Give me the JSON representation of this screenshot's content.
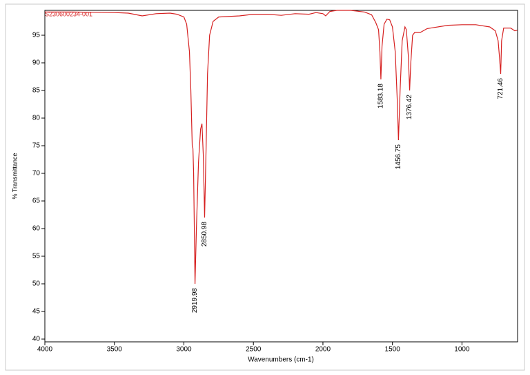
{
  "chart_data": {
    "type": "line",
    "title": "S230600234-001",
    "x_label": "Wavenumbers (cm-1)",
    "y_label": "% Transmittance",
    "xlim": [
      4000,
      600
    ],
    "ylim": [
      39.5,
      99.5
    ],
    "xticks": [
      4000,
      3500,
      3000,
      2500,
      2000,
      1500,
      1000
    ],
    "yticks": [
      40,
      45,
      50,
      55,
      60,
      65,
      70,
      75,
      80,
      85,
      90,
      95
    ],
    "x": [
      4000,
      3800,
      3500,
      3400,
      3300,
      3200,
      3100,
      3050,
      3000,
      2980,
      2960,
      2950,
      2940,
      2935,
      2930,
      2925,
      2919.98,
      2910,
      2895,
      2880,
      2870,
      2860,
      2850.98,
      2840,
      2830,
      2815,
      2790,
      2750,
      2600,
      2500,
      2400,
      2300,
      2200,
      2100,
      2050,
      2000,
      1980,
      1950,
      1900,
      1800,
      1700,
      1650,
      1620,
      1600,
      1590,
      1583.18,
      1575,
      1560,
      1540,
      1520,
      1500,
      1480,
      1465,
      1456.75,
      1445,
      1430,
      1410,
      1400,
      1385,
      1376.42,
      1368,
      1355,
      1340,
      1300,
      1250,
      1200,
      1100,
      1000,
      900,
      800,
      760,
      740,
      730,
      721.46,
      715,
      700,
      650,
      620,
      603
    ],
    "series": [
      {
        "color": "#d62020",
        "values": [
          99.2,
          99.2,
          99.1,
          99.0,
          98.5,
          98.9,
          99.0,
          98.8,
          98.3,
          97,
          92,
          85,
          75,
          74.5,
          70,
          60,
          50,
          60,
          72,
          78,
          79,
          73,
          62,
          75,
          88,
          95,
          97.5,
          98.3,
          98.5,
          98.8,
          98.8,
          98.6,
          98.9,
          98.8,
          99.1,
          98.9,
          98.5,
          99.3,
          99.5,
          99.5,
          99.2,
          98.7,
          97.3,
          96,
          92,
          87,
          93,
          97,
          97.9,
          97.8,
          96.5,
          92,
          83,
          76,
          85,
          94,
          96.5,
          96,
          91,
          85,
          90,
          95,
          95.5,
          95.5,
          96.2,
          96.4,
          96.8,
          96.9,
          96.9,
          96.5,
          95.8,
          94,
          91,
          88,
          94,
          96.3,
          96.3,
          95.8,
          95.9
        ]
      }
    ],
    "peaks": [
      {
        "x": 2919.98,
        "y": 50
      },
      {
        "x": 2850.98,
        "y": 62
      },
      {
        "x": 1583.18,
        "y": 87
      },
      {
        "x": 1456.75,
        "y": 76
      },
      {
        "x": 1376.42,
        "y": 85
      },
      {
        "x": 721.46,
        "y": 88
      }
    ]
  }
}
